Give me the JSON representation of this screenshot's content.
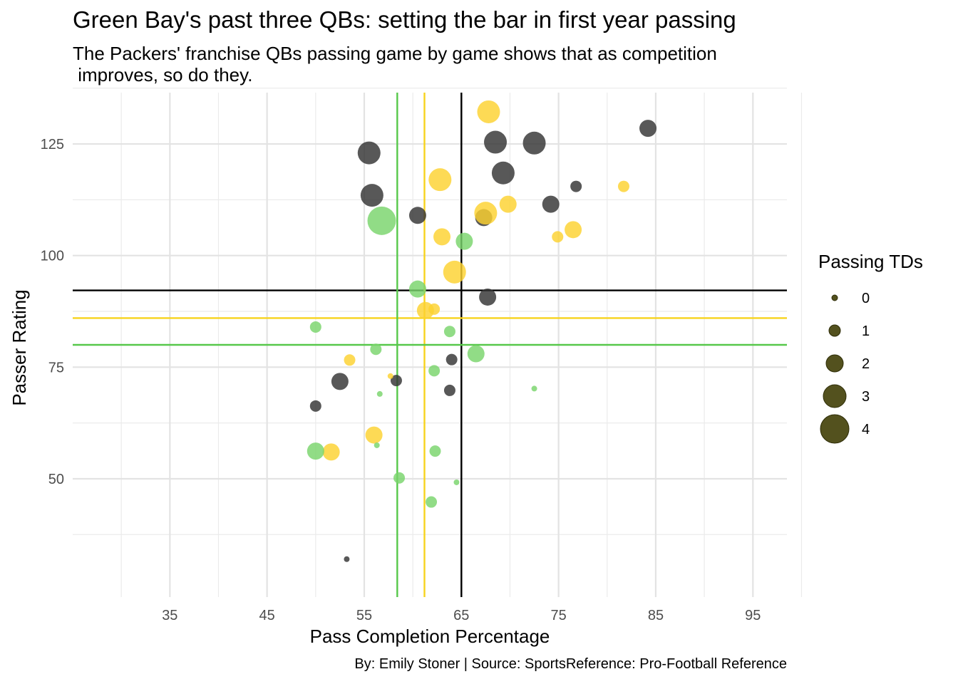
{
  "chart_data": {
    "type": "scatter",
    "title": "Green Bay's past three QBs: setting the bar in first year passing",
    "subtitle": "The Packers' franchise QBs passing game by game shows that as competition\n improves, so do they.",
    "caption": "By: Emily Stoner | Source: SportsReference: Pro-Football Reference",
    "xlabel": "Pass Completion Percentage",
    "ylabel": "Passer Rating",
    "xlim": [
      25,
      98.5
    ],
    "ylim": [
      23.5,
      136.5
    ],
    "x_ticks": [
      35,
      45,
      55,
      65,
      75,
      85,
      95
    ],
    "y_ticks": [
      50,
      75,
      100,
      125
    ],
    "grid": true,
    "legend": {
      "title": "Passing TDs",
      "position": "right",
      "entries": [
        {
          "label": "0",
          "td": 0
        },
        {
          "label": "1",
          "td": 1
        },
        {
          "label": "2",
          "td": 2
        },
        {
          "label": "3",
          "td": 3
        },
        {
          "label": "4",
          "td": 4
        }
      ],
      "color": "#4a4812"
    },
    "reference_lines": [
      {
        "series": "black",
        "color": "#000000",
        "x": 65.0,
        "y": 92.2
      },
      {
        "series": "yellow",
        "color": "#f7d31c",
        "x": 61.2,
        "y": 86.0
      },
      {
        "series": "green",
        "color": "#57c84a",
        "x": 58.4,
        "y": 80.0
      }
    ],
    "series": [
      {
        "name": "black",
        "color": "#333333",
        "points": [
          {
            "x": 55.5,
            "y": 123.0,
            "td": 3
          },
          {
            "x": 55.8,
            "y": 113.5,
            "td": 3
          },
          {
            "x": 60.5,
            "y": 109.0,
            "td": 2
          },
          {
            "x": 67.3,
            "y": 108.5,
            "td": 2
          },
          {
            "x": 68.5,
            "y": 125.4,
            "td": 3
          },
          {
            "x": 69.3,
            "y": 118.5,
            "td": 3
          },
          {
            "x": 72.5,
            "y": 125.2,
            "td": 3
          },
          {
            "x": 76.8,
            "y": 115.5,
            "td": 1
          },
          {
            "x": 74.2,
            "y": 111.5,
            "td": 2
          },
          {
            "x": 84.2,
            "y": 128.5,
            "td": 2
          },
          {
            "x": 67.7,
            "y": 90.7,
            "td": 2
          },
          {
            "x": 64.0,
            "y": 76.7,
            "td": 1
          },
          {
            "x": 52.5,
            "y": 71.8,
            "td": 2
          },
          {
            "x": 58.3,
            "y": 72.0,
            "td": 1
          },
          {
            "x": 63.8,
            "y": 69.8,
            "td": 1
          },
          {
            "x": 50.0,
            "y": 66.3,
            "td": 1
          },
          {
            "x": 53.2,
            "y": 32.0,
            "td": 0
          }
        ]
      },
      {
        "name": "yellow",
        "color": "#fcd22f",
        "points": [
          {
            "x": 67.8,
            "y": 132.2,
            "td": 3
          },
          {
            "x": 62.8,
            "y": 117.0,
            "td": 3
          },
          {
            "x": 81.7,
            "y": 115.5,
            "td": 1
          },
          {
            "x": 69.8,
            "y": 111.5,
            "td": 2
          },
          {
            "x": 67.5,
            "y": 109.5,
            "td": 3
          },
          {
            "x": 63.0,
            "y": 104.2,
            "td": 2
          },
          {
            "x": 76.5,
            "y": 105.8,
            "td": 2
          },
          {
            "x": 74.9,
            "y": 104.2,
            "td": 1
          },
          {
            "x": 64.3,
            "y": 96.3,
            "td": 3
          },
          {
            "x": 61.3,
            "y": 87.7,
            "td": 2
          },
          {
            "x": 62.2,
            "y": 88.0,
            "td": 1
          },
          {
            "x": 53.5,
            "y": 76.6,
            "td": 1
          },
          {
            "x": 57.7,
            "y": 73.0,
            "td": 0
          },
          {
            "x": 56.0,
            "y": 59.8,
            "td": 2
          },
          {
            "x": 51.6,
            "y": 56.0,
            "td": 2
          }
        ]
      },
      {
        "name": "green",
        "color": "#79d46b",
        "points": [
          {
            "x": 56.8,
            "y": 107.8,
            "td": 4
          },
          {
            "x": 65.3,
            "y": 103.2,
            "td": 2
          },
          {
            "x": 60.5,
            "y": 92.5,
            "td": 2
          },
          {
            "x": 50.0,
            "y": 84.0,
            "td": 1
          },
          {
            "x": 63.8,
            "y": 83.0,
            "td": 1
          },
          {
            "x": 56.2,
            "y": 79.0,
            "td": 1
          },
          {
            "x": 66.5,
            "y": 78.0,
            "td": 2
          },
          {
            "x": 62.2,
            "y": 74.2,
            "td": 1
          },
          {
            "x": 56.6,
            "y": 69.0,
            "td": 0
          },
          {
            "x": 72.5,
            "y": 70.2,
            "td": 0
          },
          {
            "x": 50.0,
            "y": 56.2,
            "td": 2
          },
          {
            "x": 56.3,
            "y": 57.5,
            "td": 0
          },
          {
            "x": 62.3,
            "y": 56.2,
            "td": 1
          },
          {
            "x": 58.6,
            "y": 50.2,
            "td": 1
          },
          {
            "x": 64.5,
            "y": 49.2,
            "td": 0
          },
          {
            "x": 61.9,
            "y": 44.8,
            "td": 1
          }
        ]
      }
    ]
  }
}
